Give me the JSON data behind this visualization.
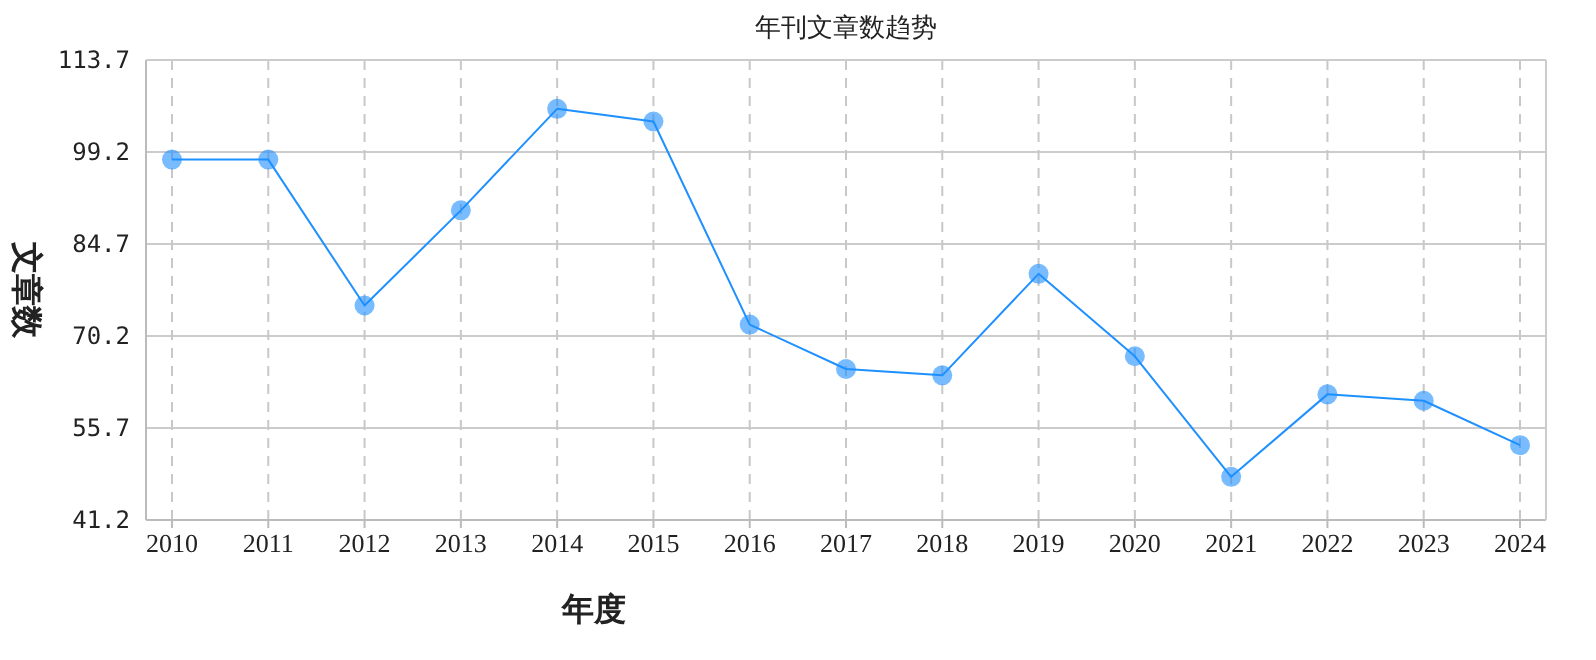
{
  "chart_data": {
    "type": "line",
    "title": "年刊文章数趋势",
    "xlabel": "年度",
    "ylabel": "文章数",
    "categories": [
      "2010",
      "2011",
      "2012",
      "2013",
      "2014",
      "2015",
      "2016",
      "2017",
      "2018",
      "2019",
      "2020",
      "2021",
      "2022",
      "2023",
      "2024"
    ],
    "series": [
      {
        "color": "#1e90ff",
        "values": [
          98,
          98,
          75,
          90,
          106,
          104,
          72,
          65,
          64,
          80,
          67,
          48,
          61,
          60,
          53
        ]
      }
    ],
    "ylim": [
      41.2,
      113.7
    ],
    "yticks": [
      41.2,
      55.7,
      70.2,
      84.7,
      99.2,
      113.7
    ],
    "grid": true,
    "marker": "circle",
    "line_style": "solid"
  }
}
